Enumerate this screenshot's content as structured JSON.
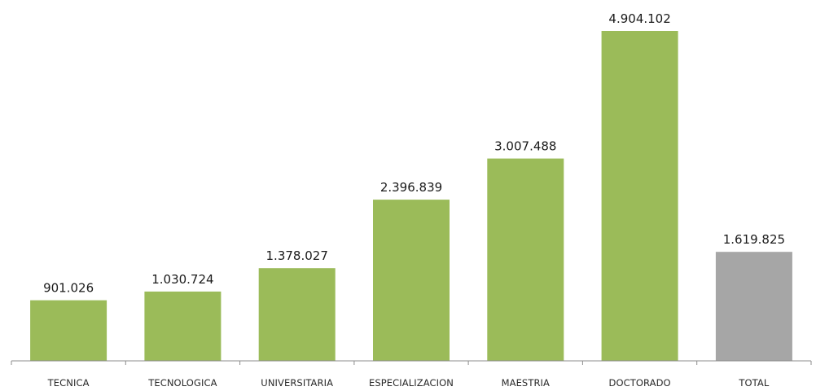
{
  "colors": {
    "bar": "#9bbb59",
    "total_bar": "#a6a6a6",
    "axis": "#8c8c8c"
  },
  "chart_data": {
    "type": "bar",
    "title": "",
    "xlabel": "",
    "ylabel": "",
    "ylim": [
      0,
      4904102
    ],
    "grid": false,
    "legend": "none",
    "categories": [
      "TECNICA",
      "TECNOLOGICA",
      "UNIVERSITARIA",
      "ESPECIALIZACION",
      "MAESTRIA",
      "DOCTORADO",
      "TOTAL"
    ],
    "values": [
      901026,
      1030724,
      1378027,
      2396839,
      3007488,
      4904102,
      1619825
    ],
    "value_labels": [
      "901.026",
      "1.030.724",
      "1.378.027",
      "2.396.839",
      "3.007.488",
      "4.904.102",
      "1.619.825"
    ],
    "highlighted_categories": [
      "TOTAL"
    ]
  }
}
